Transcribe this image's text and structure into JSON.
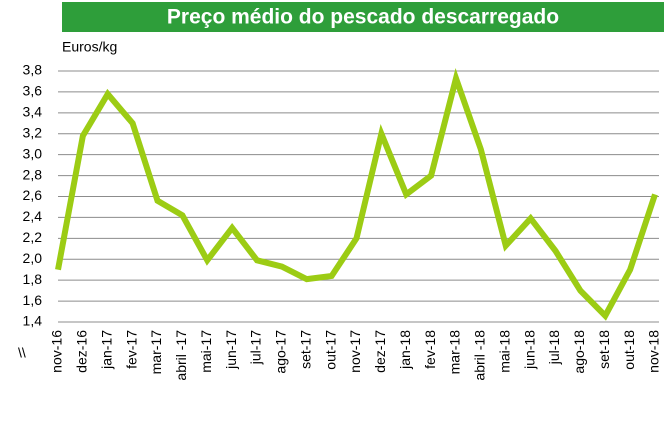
{
  "chart_data": {
    "type": "line",
    "title": "Preço médio do pescado descarregado",
    "y_axis_label": "Euros/kg",
    "annotation": "\\\\",
    "categories": [
      "nov-16",
      "dez-16",
      "jan-17",
      "fev-17",
      "mar-17",
      "abril -17",
      "mai-17",
      "jun-17",
      "jul-17",
      "ago-17",
      "set-17",
      "out-17",
      "nov-17",
      "dez-17",
      "jan-18",
      "fev-18",
      "mar-18",
      "abril -18",
      "mai-18",
      "jun-18",
      "jul-18",
      "ago-18",
      "set-18",
      "out-18",
      "nov-18"
    ],
    "series": [
      {
        "name": "Preço médio",
        "color": "#9ccc14",
        "values": [
          1.9,
          3.18,
          3.58,
          3.3,
          2.56,
          2.42,
          1.99,
          2.3,
          1.99,
          1.93,
          1.81,
          1.84,
          2.2,
          3.2,
          2.62,
          2.8,
          3.73,
          3.05,
          2.13,
          2.39,
          2.08,
          1.7,
          1.46,
          1.9,
          2.62
        ]
      }
    ],
    "ylim": [
      1.4,
      3.8
    ],
    "yticks": [
      {
        "value": 1.4,
        "label": "1,4"
      },
      {
        "value": 1.6,
        "label": "1,6"
      },
      {
        "value": 1.8,
        "label": "1,8"
      },
      {
        "value": 2.0,
        "label": "2,0"
      },
      {
        "value": 2.2,
        "label": "2,2"
      },
      {
        "value": 2.4,
        "label": "2,4"
      },
      {
        "value": 2.6,
        "label": "2,6"
      },
      {
        "value": 2.8,
        "label": "2,8"
      },
      {
        "value": 3.0,
        "label": "3,0"
      },
      {
        "value": 3.2,
        "label": "3,2"
      },
      {
        "value": 3.4,
        "label": "3,4"
      },
      {
        "value": 3.6,
        "label": "3,6"
      },
      {
        "value": 3.8,
        "label": "3,8"
      }
    ],
    "grid": true,
    "title_color": "#2e9e3a"
  }
}
